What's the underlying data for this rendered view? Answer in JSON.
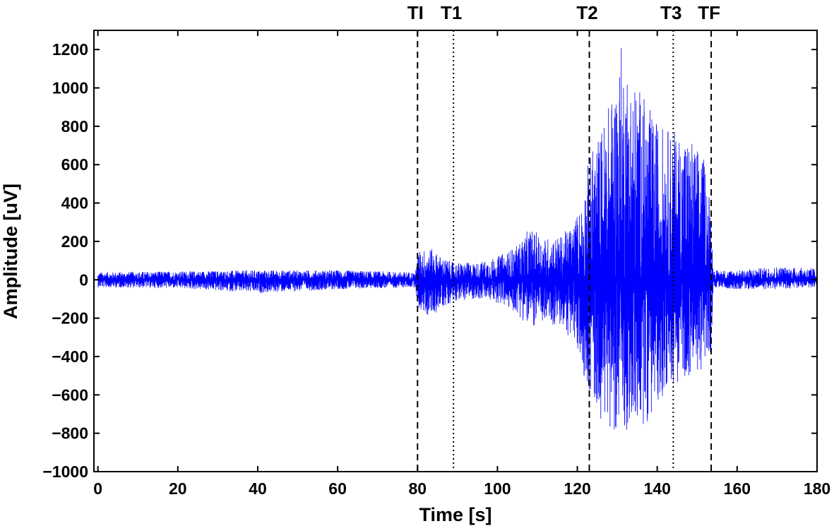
{
  "chart_data": {
    "type": "line",
    "title": "",
    "xlabel": "Time [s]",
    "ylabel": "Amplitude [uV]",
    "xlim": [
      -1,
      180
    ],
    "ylim": [
      -1000,
      1300
    ],
    "xticks": [
      0,
      20,
      40,
      60,
      80,
      100,
      120,
      140,
      160,
      180
    ],
    "yticks": [
      -1000,
      -800,
      -600,
      -400,
      -200,
      0,
      200,
      400,
      600,
      800,
      1000,
      1200
    ],
    "grid": false,
    "legend": "none",
    "line_color": "#0000ff",
    "markers": [
      {
        "label": "TI",
        "x": 80,
        "style": "dashed"
      },
      {
        "label": "T1",
        "x": 89,
        "style": "dotted"
      },
      {
        "label": "T2",
        "x": 123,
        "style": "dashed"
      },
      {
        "label": "T3",
        "x": 144,
        "style": "dotted"
      },
      {
        "label": "TF",
        "x": 153.5,
        "style": "dashed"
      }
    ],
    "signal_envelope": {
      "x": [
        -1,
        20,
        40,
        60,
        79.5,
        80,
        83,
        86,
        89,
        95,
        100,
        105,
        108,
        112,
        116,
        119,
        121,
        123,
        126,
        129,
        131,
        134,
        136,
        139,
        142,
        144,
        147,
        150,
        152,
        153.5,
        154,
        160,
        170,
        180
      ],
      "upper": [
        40,
        45,
        50,
        50,
        40,
        150,
        170,
        120,
        90,
        90,
        120,
        180,
        270,
        220,
        230,
        300,
        400,
        650,
        800,
        1000,
        1230,
        1050,
        1000,
        850,
        800,
        780,
        780,
        700,
        620,
        400,
        50,
        50,
        70,
        60
      ],
      "lower": [
        -40,
        -45,
        -70,
        -50,
        -40,
        -150,
        -200,
        -150,
        -110,
        -100,
        -120,
        -180,
        -250,
        -230,
        -250,
        -330,
        -450,
        -600,
        -730,
        -780,
        -800,
        -780,
        -780,
        -700,
        -580,
        -550,
        -520,
        -480,
        -470,
        -400,
        -40,
        -50,
        -50,
        -40
      ]
    }
  }
}
